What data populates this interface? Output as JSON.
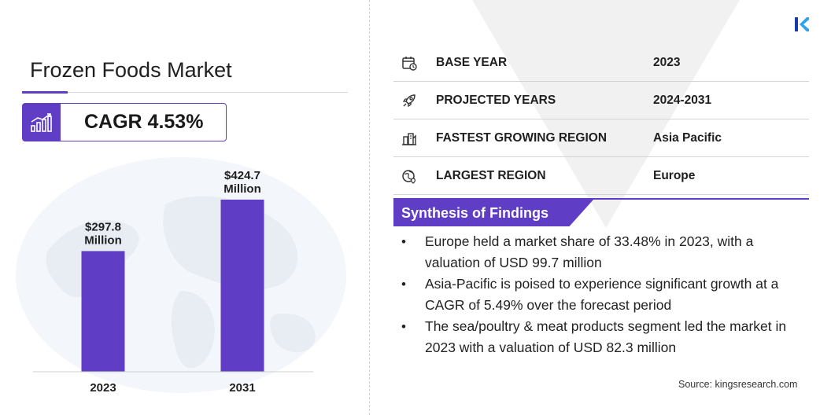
{
  "title": "Frozen Foods Market",
  "cagr": "CAGR 4.53%",
  "chart_data": {
    "type": "bar",
    "categories": [
      "2023",
      "2031"
    ],
    "values": [
      297.8,
      424.7
    ],
    "value_labels": [
      [
        "$297.8",
        "Million"
      ],
      [
        "$424.7",
        "Million"
      ]
    ],
    "unit": "USD Million",
    "bar_color": "#5f3dc4"
  },
  "info_rows": [
    {
      "icon": "calendar-icon",
      "label": "BASE YEAR",
      "value": "2023"
    },
    {
      "icon": "rocket-icon",
      "label": "PROJECTED YEARS",
      "value": "2024-2031"
    },
    {
      "icon": "city-region-icon",
      "label": "FASTEST GROWING REGION",
      "value": "Asia Pacific"
    },
    {
      "icon": "globe-icon",
      "label": "LARGEST REGION",
      "value": "Europe"
    }
  ],
  "synthesis": {
    "title": "Synthesis of Findings",
    "items": [
      "Europe held a market share of 33.48% in 2023, with a valuation of USD 99.7 million",
      "Asia-Pacific is poised to experience significant growth at a CAGR of 5.49% over the forecast period",
      "The sea/poultry & meat products segment led the market in 2023 with a valuation of USD 82.3 million"
    ]
  },
  "source": "Source:  kingsresearch.com",
  "colors": {
    "accent": "#5f3dc4",
    "text": "#1f1f1f"
  }
}
